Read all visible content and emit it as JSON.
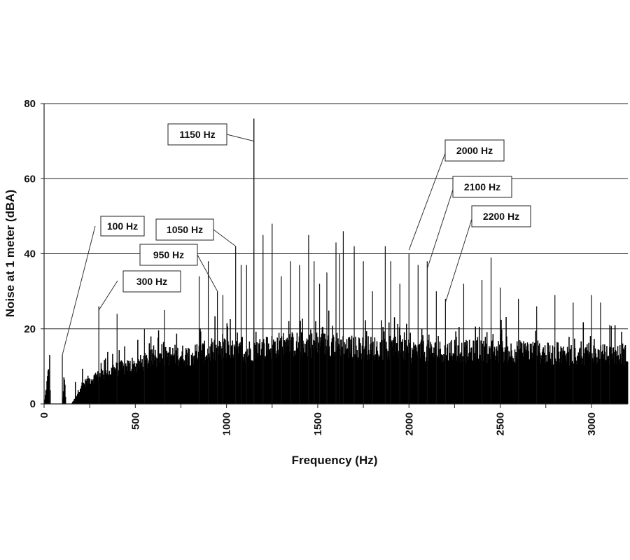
{
  "chart_data": {
    "type": "bar",
    "xlabel": "Frequency (Hz)",
    "ylabel": "Noise at 1 meter (dBA)",
    "xlim": [
      0,
      3200
    ],
    "ylim": [
      0,
      80
    ],
    "x_ticks": [
      0,
      500,
      1000,
      1500,
      2000,
      2500,
      3000
    ],
    "y_ticks": [
      0,
      20,
      40,
      60,
      80
    ],
    "y_gridlines": [
      20,
      40,
      60,
      80
    ],
    "series": [
      {
        "values_note": "dense narrowband spectrum",
        "baseline_envelope": [
          [
            0,
            0
          ],
          [
            30,
            12
          ],
          [
            35,
            0
          ],
          [
            100,
            0
          ],
          [
            110,
            8
          ],
          [
            120,
            0
          ],
          [
            150,
            0
          ],
          [
            175,
            2
          ],
          [
            200,
            5
          ],
          [
            250,
            7
          ],
          [
            300,
            8
          ],
          [
            400,
            10
          ],
          [
            500,
            11
          ],
          [
            600,
            13
          ],
          [
            700,
            14
          ],
          [
            800,
            14
          ],
          [
            900,
            15
          ],
          [
            1000,
            15
          ],
          [
            1100,
            15
          ],
          [
            1200,
            16
          ],
          [
            1300,
            17
          ],
          [
            1400,
            17
          ],
          [
            1500,
            17
          ],
          [
            1600,
            17
          ],
          [
            1700,
            16
          ],
          [
            1800,
            16
          ],
          [
            1900,
            16
          ],
          [
            2000,
            15
          ],
          [
            2100,
            15
          ],
          [
            2200,
            15
          ],
          [
            2300,
            15
          ],
          [
            2400,
            15
          ],
          [
            2500,
            15
          ],
          [
            2600,
            15
          ],
          [
            2700,
            15
          ],
          [
            2800,
            14
          ],
          [
            2900,
            14
          ],
          [
            3000,
            14
          ],
          [
            3100,
            14
          ],
          [
            3200,
            14
          ]
        ],
        "peaks": [
          [
            30,
            12
          ],
          [
            100,
            13
          ],
          [
            300,
            26
          ],
          [
            400,
            24
          ],
          [
            550,
            20
          ],
          [
            660,
            25
          ],
          [
            850,
            34
          ],
          [
            900,
            38
          ],
          [
            950,
            30
          ],
          [
            980,
            29
          ],
          [
            1050,
            42
          ],
          [
            1080,
            37
          ],
          [
            1110,
            37
          ],
          [
            1150,
            76
          ],
          [
            1200,
            45
          ],
          [
            1250,
            48
          ],
          [
            1300,
            34
          ],
          [
            1350,
            38
          ],
          [
            1400,
            37
          ],
          [
            1450,
            45
          ],
          [
            1480,
            38
          ],
          [
            1510,
            32
          ],
          [
            1550,
            35
          ],
          [
            1600,
            43
          ],
          [
            1620,
            40
          ],
          [
            1640,
            46
          ],
          [
            1700,
            42
          ],
          [
            1750,
            38
          ],
          [
            1800,
            30
          ],
          [
            1870,
            42
          ],
          [
            1900,
            38
          ],
          [
            1950,
            32
          ],
          [
            2000,
            40
          ],
          [
            2050,
            37
          ],
          [
            2100,
            38
          ],
          [
            2150,
            30
          ],
          [
            2200,
            28
          ],
          [
            2300,
            32
          ],
          [
            2400,
            33
          ],
          [
            2450,
            39
          ],
          [
            2500,
            31
          ],
          [
            2600,
            28
          ],
          [
            2700,
            26
          ],
          [
            2800,
            29
          ],
          [
            2900,
            27
          ],
          [
            3000,
            29
          ],
          [
            3050,
            27
          ],
          [
            3100,
            21
          ]
        ]
      }
    ],
    "annotations": [
      {
        "label": "100 Hz",
        "x": 100,
        "y": 13
      },
      {
        "label": "300 Hz",
        "x": 300,
        "y": 25
      },
      {
        "label": "950 Hz",
        "x": 950,
        "y": 30
      },
      {
        "label": "1050 Hz",
        "x": 1050,
        "y": 42
      },
      {
        "label": "1150 Hz",
        "x": 1150,
        "y": 70
      },
      {
        "label": "2000 Hz",
        "x": 2000,
        "y": 41
      },
      {
        "label": "2100 Hz",
        "x": 2100,
        "y": 36
      },
      {
        "label": "2200 Hz",
        "x": 2200,
        "y": 27
      }
    ]
  }
}
